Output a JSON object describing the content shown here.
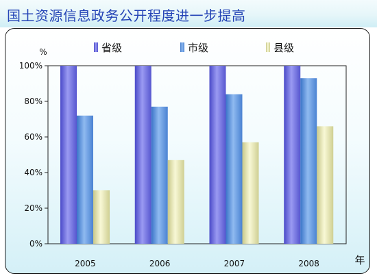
{
  "header": {
    "title": "国土资源信息政务公开程度进一步提高"
  },
  "chart_data": {
    "type": "bar",
    "categories": [
      "2005",
      "2006",
      "2007",
      "2008"
    ],
    "series": [
      {
        "name": "省级",
        "color": "#6f6fe0",
        "values": [
          100,
          100,
          100,
          100
        ]
      },
      {
        "name": "市级",
        "color": "#5f95df",
        "values": [
          72,
          77,
          84,
          93
        ]
      },
      {
        "name": "县级",
        "color": "#e2e2ac",
        "values": [
          30,
          47,
          57,
          66
        ]
      }
    ],
    "ylim": [
      0,
      100
    ],
    "yticks": [
      "0%",
      "20%",
      "40%",
      "60%",
      "80%",
      "100%"
    ],
    "ylabel": "%",
    "xlabel": "年",
    "legend_position": "top",
    "grid": false
  }
}
